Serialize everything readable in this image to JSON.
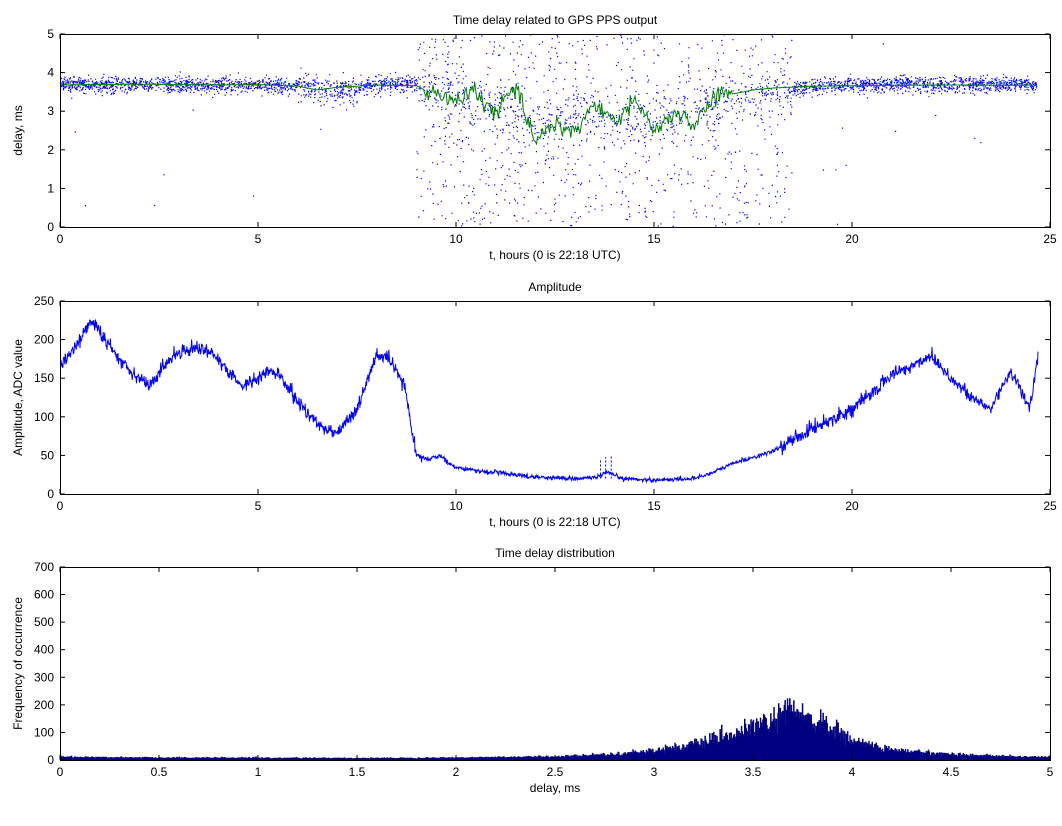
{
  "chart_data": [
    {
      "type": "scatter",
      "title": "Time delay related to GPS PPS output",
      "xlabel": "t, hours (0 is 22:18 UTC)",
      "ylabel": "delay, ms",
      "xlim": [
        0,
        25
      ],
      "ylim": [
        0,
        5
      ],
      "xticks": [
        "0",
        "5",
        "10",
        "15",
        "20",
        "25"
      ],
      "yticks": [
        "0",
        "1",
        "2",
        "3",
        "4",
        "5"
      ],
      "grid": false,
      "series": [
        {
          "color": "#0000ff",
          "style": "dots",
          "band_center_by_hour": [
            [
              0,
              3.7
            ],
            [
              1,
              3.7
            ],
            [
              2,
              3.72
            ],
            [
              3,
              3.7
            ],
            [
              4,
              3.68
            ],
            [
              5,
              3.7
            ],
            [
              6,
              3.65
            ],
            [
              7,
              3.5
            ],
            [
              8,
              3.7
            ],
            [
              9,
              3.7
            ],
            [
              10,
              3.4
            ],
            [
              11,
              3.1
            ],
            [
              12,
              2.6
            ],
            [
              13,
              3.0
            ],
            [
              14,
              2.7
            ],
            [
              15,
              2.8
            ],
            [
              16,
              3.0
            ],
            [
              17,
              3.4
            ],
            [
              18,
              3.55
            ],
            [
              19,
              3.65
            ],
            [
              20,
              3.7
            ],
            [
              21,
              3.7
            ],
            [
              22,
              3.7
            ],
            [
              23,
              3.7
            ],
            [
              24,
              3.7
            ],
            [
              24.6,
              3.7
            ]
          ]
        },
        {
          "color": "#008000",
          "style": "line",
          "points": [
            [
              0,
              3.68
            ],
            [
              1,
              3.69
            ],
            [
              2,
              3.7
            ],
            [
              3,
              3.69
            ],
            [
              4,
              3.68
            ],
            [
              5,
              3.69
            ],
            [
              6,
              3.65
            ],
            [
              6.5,
              3.55
            ],
            [
              7,
              3.62
            ],
            [
              8,
              3.68
            ],
            [
              9,
              3.66
            ],
            [
              9.5,
              3.4
            ],
            [
              10,
              3.25
            ],
            [
              10.5,
              3.5
            ],
            [
              11,
              2.95
            ],
            [
              11.5,
              3.6
            ],
            [
              12,
              2.3
            ],
            [
              12.5,
              2.7
            ],
            [
              13,
              2.45
            ],
            [
              13.5,
              3.2
            ],
            [
              14,
              2.7
            ],
            [
              14.5,
              3.3
            ],
            [
              15,
              2.45
            ],
            [
              15.5,
              3.0
            ],
            [
              16,
              2.6
            ],
            [
              16.5,
              3.4
            ],
            [
              17,
              3.45
            ],
            [
              17.5,
              3.55
            ],
            [
              18,
              3.6
            ],
            [
              19,
              3.65
            ],
            [
              20,
              3.66
            ],
            [
              21,
              3.67
            ],
            [
              22,
              3.68
            ],
            [
              23,
              3.68
            ],
            [
              24,
              3.67
            ],
            [
              24.6,
              3.68
            ]
          ]
        }
      ]
    },
    {
      "type": "line",
      "title": "Amplitude",
      "xlabel": "t, hours (0 is 22:18 UTC)",
      "ylabel": "Amplitude, ADC value",
      "xlim": [
        0,
        25
      ],
      "ylim": [
        0,
        250
      ],
      "xticks": [
        "0",
        "5",
        "10",
        "15",
        "20",
        "25"
      ],
      "yticks": [
        "0",
        "50",
        "100",
        "150",
        "200",
        "250"
      ],
      "grid": false,
      "series": [
        {
          "color": "#0000ff",
          "points": [
            [
              0,
              165
            ],
            [
              0.5,
              200
            ],
            [
              0.8,
              225
            ],
            [
              1.2,
              195
            ],
            [
              1.5,
              175
            ],
            [
              2.0,
              150
            ],
            [
              2.3,
              140
            ],
            [
              2.6,
              165
            ],
            [
              3.0,
              185
            ],
            [
              3.5,
              190
            ],
            [
              3.8,
              185
            ],
            [
              4.2,
              160
            ],
            [
              4.6,
              140
            ],
            [
              5.0,
              150
            ],
            [
              5.3,
              160
            ],
            [
              5.6,
              150
            ],
            [
              6.0,
              120
            ],
            [
              6.5,
              90
            ],
            [
              7.0,
              80
            ],
            [
              7.5,
              110
            ],
            [
              8.0,
              180
            ],
            [
              8.3,
              175
            ],
            [
              8.7,
              140
            ],
            [
              9.0,
              50
            ],
            [
              9.3,
              45
            ],
            [
              9.6,
              50
            ],
            [
              9.8,
              40
            ],
            [
              10.0,
              35
            ],
            [
              10.5,
              30
            ],
            [
              11.0,
              28
            ],
            [
              11.5,
              25
            ],
            [
              12.0,
              22
            ],
            [
              13.0,
              20
            ],
            [
              13.6,
              22
            ],
            [
              13.8,
              28
            ],
            [
              14.2,
              20
            ],
            [
              15.0,
              18
            ],
            [
              16.0,
              20
            ],
            [
              16.5,
              28
            ],
            [
              17.0,
              40
            ],
            [
              18.0,
              55
            ],
            [
              19.0,
              85
            ],
            [
              20.0,
              110
            ],
            [
              20.5,
              130
            ],
            [
              21.0,
              155
            ],
            [
              21.5,
              165
            ],
            [
              22.0,
              180
            ],
            [
              22.5,
              150
            ],
            [
              23.0,
              125
            ],
            [
              23.5,
              110
            ],
            [
              24.0,
              160
            ],
            [
              24.5,
              110
            ],
            [
              24.7,
              185
            ]
          ]
        }
      ]
    },
    {
      "type": "bar",
      "title": "Time delay distribution",
      "xlabel": "delay, ms",
      "ylabel": "Frequency of occurrence",
      "xlim": [
        0,
        5
      ],
      "ylim": [
        0,
        700
      ],
      "xticks": [
        "0",
        "0.5",
        "1",
        "1.5",
        "2",
        "2.5",
        "3",
        "3.5",
        "4",
        "4.5",
        "5"
      ],
      "yticks": [
        "0",
        "100",
        "200",
        "300",
        "400",
        "500",
        "600",
        "700"
      ],
      "grid": false,
      "bar_color": "#000080",
      "profile": [
        [
          0.0,
          10
        ],
        [
          0.5,
          8
        ],
        [
          1.0,
          7
        ],
        [
          1.5,
          6
        ],
        [
          2.0,
          8
        ],
        [
          2.5,
          12
        ],
        [
          2.8,
          20
        ],
        [
          3.0,
          35
        ],
        [
          3.2,
          55
        ],
        [
          3.4,
          90
        ],
        [
          3.55,
          130
        ],
        [
          3.7,
          175
        ],
        [
          3.85,
          130
        ],
        [
          4.0,
          70
        ],
        [
          4.2,
          35
        ],
        [
          4.5,
          20
        ],
        [
          4.8,
          12
        ],
        [
          5.0,
          10
        ]
      ]
    }
  ]
}
